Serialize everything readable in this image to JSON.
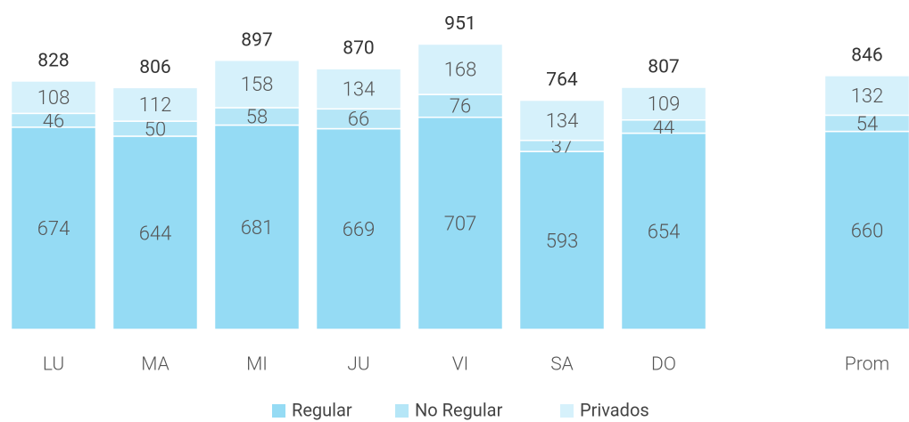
{
  "chart_data": {
    "type": "stacked_bar",
    "categories": [
      "LU",
      "MA",
      "MI",
      "JU",
      "VI",
      "SA",
      "DO",
      null,
      "Prom"
    ],
    "series": [
      {
        "name": "Regular",
        "color": "#95dbf4",
        "values": [
          674,
          644,
          681,
          669,
          707,
          593,
          654,
          null,
          660
        ]
      },
      {
        "name": "No Regular",
        "color": "#b5e6f7",
        "values": [
          46,
          50,
          58,
          66,
          76,
          37,
          44,
          null,
          54
        ]
      },
      {
        "name": "Privados",
        "color": "#d6f1fb",
        "values": [
          108,
          112,
          158,
          134,
          168,
          134,
          109,
          null,
          132
        ]
      }
    ],
    "totals": [
      828,
      806,
      897,
      870,
      951,
      764,
      807,
      null,
      846
    ],
    "ylim": [
      0,
      1000
    ]
  }
}
